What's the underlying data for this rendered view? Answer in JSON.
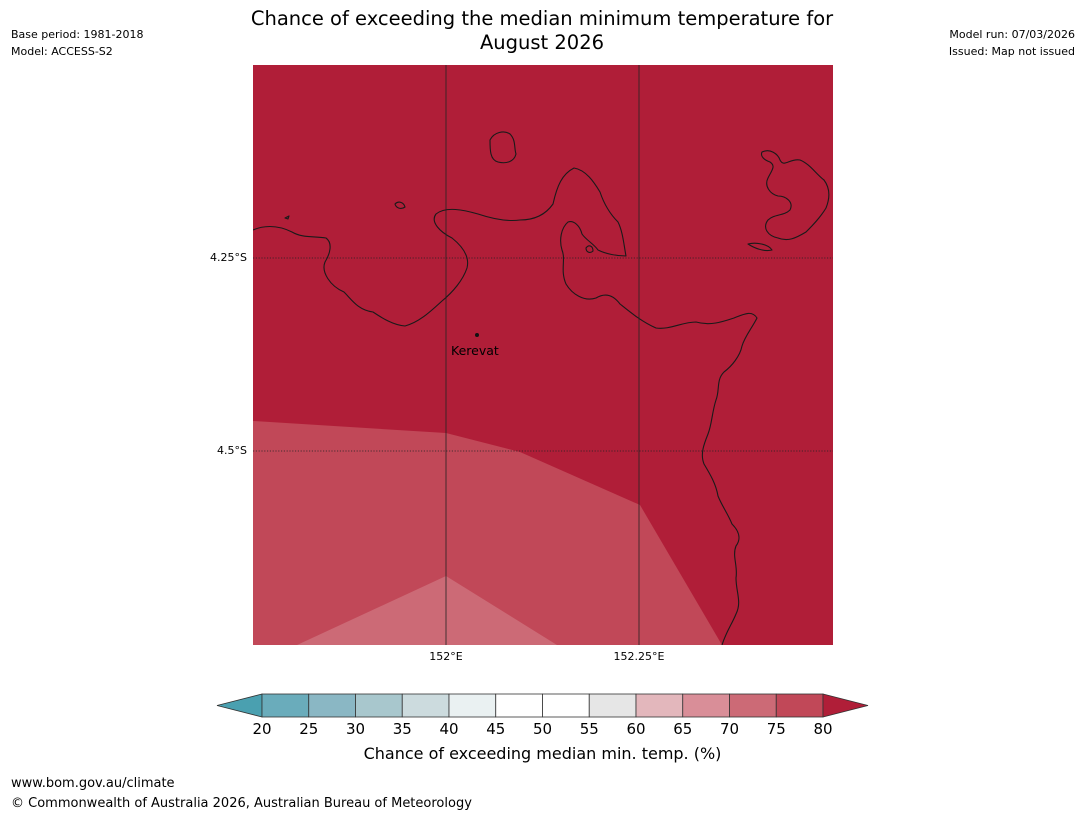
{
  "header": {
    "title_line1": "Chance of exceeding the median minimum temperature for",
    "title_line2": "August 2026",
    "base_period": "Base period: 1981-2018",
    "model": "Model: ACCESS-S2",
    "model_run": "Model run: 07/03/2026",
    "issued": "Issued: Map not issued"
  },
  "map": {
    "latitude_labels": [
      "4.25°S",
      "4.5°S"
    ],
    "longitude_labels": [
      "152°E",
      "152.25°E"
    ],
    "place": {
      "name": "Kerevat"
    },
    "colors": {
      "p80_plus": "#b01e38",
      "p75_80": "#c14858",
      "p70_75": "#cc6a76"
    }
  },
  "colorbar": {
    "label": "Chance of exceeding median min. temp. (%)",
    "ticks": [
      "20",
      "25",
      "30",
      "35",
      "40",
      "45",
      "50",
      "55",
      "60",
      "65",
      "70",
      "75",
      "80"
    ],
    "segments": [
      {
        "range": "<20",
        "color": "#4aa0b0"
      },
      {
        "range": "20-25",
        "color": "#6aacbb"
      },
      {
        "range": "25-30",
        "color": "#8ab7c4"
      },
      {
        "range": "30-35",
        "color": "#a8c7cd"
      },
      {
        "range": "35-40",
        "color": "#ccdbde"
      },
      {
        "range": "40-45",
        "color": "#eaf1f2"
      },
      {
        "range": "45-50",
        "color": "#ffffff"
      },
      {
        "range": "50-55",
        "color": "#ffffff"
      },
      {
        "range": "55-60",
        "color": "#e6e6e6"
      },
      {
        "range": "60-65",
        "color": "#e3b7bc"
      },
      {
        "range": "65-70",
        "color": "#d98e98"
      },
      {
        "range": "70-75",
        "color": "#cc6a76"
      },
      {
        "range": "75-80",
        "color": "#c14858"
      },
      {
        "range": ">80",
        "color": "#b01e38"
      }
    ]
  },
  "footer": {
    "url": "www.bom.gov.au/climate",
    "copyright": "© Commonwealth of Australia 2026, Australian Bureau of Meteorology"
  }
}
